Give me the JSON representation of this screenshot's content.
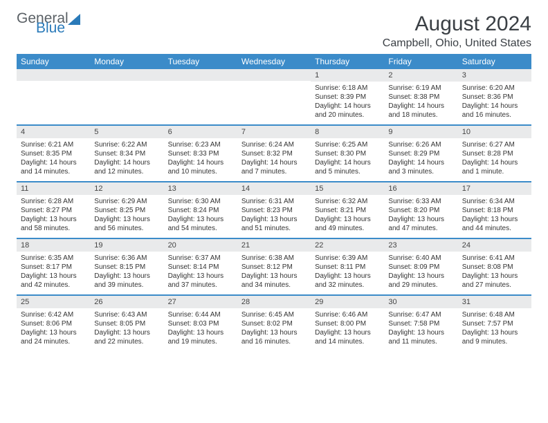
{
  "brand": {
    "part1": "General",
    "part2": "Blue"
  },
  "title": "August 2024",
  "location": "Campbell, Ohio, United States",
  "colors": {
    "header_bg": "#3b8bc9",
    "header_text": "#ffffff",
    "daynum_bg": "#e9eaeb",
    "week_divider": "#3b8bc9",
    "brand_gray": "#5b6166",
    "brand_blue": "#2a7ab9",
    "text": "#333333",
    "page_bg": "#ffffff"
  },
  "day_names": [
    "Sunday",
    "Monday",
    "Tuesday",
    "Wednesday",
    "Thursday",
    "Friday",
    "Saturday"
  ],
  "weeks": [
    [
      {
        "day": "",
        "sunrise": "",
        "sunset": "",
        "daylight": ""
      },
      {
        "day": "",
        "sunrise": "",
        "sunset": "",
        "daylight": ""
      },
      {
        "day": "",
        "sunrise": "",
        "sunset": "",
        "daylight": ""
      },
      {
        "day": "",
        "sunrise": "",
        "sunset": "",
        "daylight": ""
      },
      {
        "day": "1",
        "sunrise": "Sunrise: 6:18 AM",
        "sunset": "Sunset: 8:39 PM",
        "daylight": "Daylight: 14 hours and 20 minutes."
      },
      {
        "day": "2",
        "sunrise": "Sunrise: 6:19 AM",
        "sunset": "Sunset: 8:38 PM",
        "daylight": "Daylight: 14 hours and 18 minutes."
      },
      {
        "day": "3",
        "sunrise": "Sunrise: 6:20 AM",
        "sunset": "Sunset: 8:36 PM",
        "daylight": "Daylight: 14 hours and 16 minutes."
      }
    ],
    [
      {
        "day": "4",
        "sunrise": "Sunrise: 6:21 AM",
        "sunset": "Sunset: 8:35 PM",
        "daylight": "Daylight: 14 hours and 14 minutes."
      },
      {
        "day": "5",
        "sunrise": "Sunrise: 6:22 AM",
        "sunset": "Sunset: 8:34 PM",
        "daylight": "Daylight: 14 hours and 12 minutes."
      },
      {
        "day": "6",
        "sunrise": "Sunrise: 6:23 AM",
        "sunset": "Sunset: 8:33 PM",
        "daylight": "Daylight: 14 hours and 10 minutes."
      },
      {
        "day": "7",
        "sunrise": "Sunrise: 6:24 AM",
        "sunset": "Sunset: 8:32 PM",
        "daylight": "Daylight: 14 hours and 7 minutes."
      },
      {
        "day": "8",
        "sunrise": "Sunrise: 6:25 AM",
        "sunset": "Sunset: 8:30 PM",
        "daylight": "Daylight: 14 hours and 5 minutes."
      },
      {
        "day": "9",
        "sunrise": "Sunrise: 6:26 AM",
        "sunset": "Sunset: 8:29 PM",
        "daylight": "Daylight: 14 hours and 3 minutes."
      },
      {
        "day": "10",
        "sunrise": "Sunrise: 6:27 AM",
        "sunset": "Sunset: 8:28 PM",
        "daylight": "Daylight: 14 hours and 1 minute."
      }
    ],
    [
      {
        "day": "11",
        "sunrise": "Sunrise: 6:28 AM",
        "sunset": "Sunset: 8:27 PM",
        "daylight": "Daylight: 13 hours and 58 minutes."
      },
      {
        "day": "12",
        "sunrise": "Sunrise: 6:29 AM",
        "sunset": "Sunset: 8:25 PM",
        "daylight": "Daylight: 13 hours and 56 minutes."
      },
      {
        "day": "13",
        "sunrise": "Sunrise: 6:30 AM",
        "sunset": "Sunset: 8:24 PM",
        "daylight": "Daylight: 13 hours and 54 minutes."
      },
      {
        "day": "14",
        "sunrise": "Sunrise: 6:31 AM",
        "sunset": "Sunset: 8:23 PM",
        "daylight": "Daylight: 13 hours and 51 minutes."
      },
      {
        "day": "15",
        "sunrise": "Sunrise: 6:32 AM",
        "sunset": "Sunset: 8:21 PM",
        "daylight": "Daylight: 13 hours and 49 minutes."
      },
      {
        "day": "16",
        "sunrise": "Sunrise: 6:33 AM",
        "sunset": "Sunset: 8:20 PM",
        "daylight": "Daylight: 13 hours and 47 minutes."
      },
      {
        "day": "17",
        "sunrise": "Sunrise: 6:34 AM",
        "sunset": "Sunset: 8:18 PM",
        "daylight": "Daylight: 13 hours and 44 minutes."
      }
    ],
    [
      {
        "day": "18",
        "sunrise": "Sunrise: 6:35 AM",
        "sunset": "Sunset: 8:17 PM",
        "daylight": "Daylight: 13 hours and 42 minutes."
      },
      {
        "day": "19",
        "sunrise": "Sunrise: 6:36 AM",
        "sunset": "Sunset: 8:15 PM",
        "daylight": "Daylight: 13 hours and 39 minutes."
      },
      {
        "day": "20",
        "sunrise": "Sunrise: 6:37 AM",
        "sunset": "Sunset: 8:14 PM",
        "daylight": "Daylight: 13 hours and 37 minutes."
      },
      {
        "day": "21",
        "sunrise": "Sunrise: 6:38 AM",
        "sunset": "Sunset: 8:12 PM",
        "daylight": "Daylight: 13 hours and 34 minutes."
      },
      {
        "day": "22",
        "sunrise": "Sunrise: 6:39 AM",
        "sunset": "Sunset: 8:11 PM",
        "daylight": "Daylight: 13 hours and 32 minutes."
      },
      {
        "day": "23",
        "sunrise": "Sunrise: 6:40 AM",
        "sunset": "Sunset: 8:09 PM",
        "daylight": "Daylight: 13 hours and 29 minutes."
      },
      {
        "day": "24",
        "sunrise": "Sunrise: 6:41 AM",
        "sunset": "Sunset: 8:08 PM",
        "daylight": "Daylight: 13 hours and 27 minutes."
      }
    ],
    [
      {
        "day": "25",
        "sunrise": "Sunrise: 6:42 AM",
        "sunset": "Sunset: 8:06 PM",
        "daylight": "Daylight: 13 hours and 24 minutes."
      },
      {
        "day": "26",
        "sunrise": "Sunrise: 6:43 AM",
        "sunset": "Sunset: 8:05 PM",
        "daylight": "Daylight: 13 hours and 22 minutes."
      },
      {
        "day": "27",
        "sunrise": "Sunrise: 6:44 AM",
        "sunset": "Sunset: 8:03 PM",
        "daylight": "Daylight: 13 hours and 19 minutes."
      },
      {
        "day": "28",
        "sunrise": "Sunrise: 6:45 AM",
        "sunset": "Sunset: 8:02 PM",
        "daylight": "Daylight: 13 hours and 16 minutes."
      },
      {
        "day": "29",
        "sunrise": "Sunrise: 6:46 AM",
        "sunset": "Sunset: 8:00 PM",
        "daylight": "Daylight: 13 hours and 14 minutes."
      },
      {
        "day": "30",
        "sunrise": "Sunrise: 6:47 AM",
        "sunset": "Sunset: 7:58 PM",
        "daylight": "Daylight: 13 hours and 11 minutes."
      },
      {
        "day": "31",
        "sunrise": "Sunrise: 6:48 AM",
        "sunset": "Sunset: 7:57 PM",
        "daylight": "Daylight: 13 hours and 9 minutes."
      }
    ]
  ]
}
